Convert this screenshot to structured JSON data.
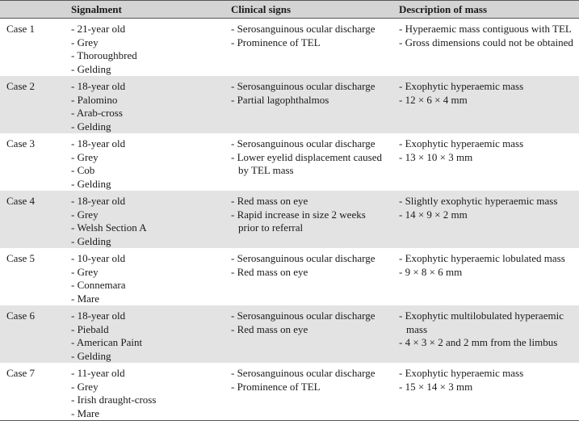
{
  "table": {
    "header": {
      "signalment": "Signalment",
      "clinical_signs": "Clinical signs",
      "description": "Description of mass"
    },
    "rows": [
      {
        "case": "Case 1",
        "signalment": [
          "- 21-year old",
          "- Grey",
          "- Thoroughbred",
          "- Gelding"
        ],
        "clinical_signs": [
          "- Serosanguinous ocular discharge",
          "- Prominence of TEL"
        ],
        "description": [
          "- Hyperaemic mass contiguous with TEL",
          "- Gross dimensions could not be obtained"
        ]
      },
      {
        "case": "Case 2",
        "signalment": [
          "- 18-year old",
          "- Palomino",
          "- Arab-cross",
          "- Gelding"
        ],
        "clinical_signs": [
          "- Serosanguinous ocular discharge",
          "- Partial lagophthalmos"
        ],
        "description": [
          "- Exophytic hyperaemic mass",
          "- 12 × 6 × 4 mm"
        ]
      },
      {
        "case": "Case 3",
        "signalment": [
          "- 18-year old",
          "- Grey",
          "- Cob",
          "- Gelding"
        ],
        "clinical_signs": [
          "- Serosanguinous ocular discharge",
          "- Lower eyelid displacement caused by TEL mass"
        ],
        "description": [
          "- Exophytic hyperaemic mass",
          "- 13 × 10 × 3 mm"
        ]
      },
      {
        "case": "Case 4",
        "signalment": [
          "- 18-year old",
          "- Grey",
          "- Welsh Section A",
          "- Gelding"
        ],
        "clinical_signs": [
          "- Red mass on eye",
          "- Rapid increase in size 2 weeks prior to referral"
        ],
        "description": [
          "- Slightly exophytic hyperaemic mass",
          "- 14 × 9 × 2 mm"
        ]
      },
      {
        "case": "Case 5",
        "signalment": [
          "- 10-year old",
          "- Grey",
          "- Connemara",
          "- Mare"
        ],
        "clinical_signs": [
          "- Serosanguinous ocular discharge",
          "- Red mass on eye"
        ],
        "description": [
          "- Exophytic hyperaemic lobulated mass",
          "- 9 × 8 × 6 mm"
        ]
      },
      {
        "case": "Case 6",
        "signalment": [
          "- 18-year old",
          "- Piebald",
          "- American Paint",
          "- Gelding"
        ],
        "clinical_signs": [
          "- Serosanguinous ocular discharge",
          "- Red mass on eye"
        ],
        "description": [
          "- Exophytic multilobulated hyperaemic mass",
          "- 4 × 3 × 2 and 2 mm from the limbus"
        ]
      },
      {
        "case": "Case 7",
        "signalment": [
          "- 11-year old",
          "- Grey",
          "- Irish draught-cross",
          "- Mare"
        ],
        "clinical_signs": [
          "- Serosanguinous ocular discharge",
          "- Prominence of TEL"
        ],
        "description": [
          "- Exophytic hyperaemic mass",
          "- 15 × 14 × 3 mm"
        ]
      }
    ]
  }
}
